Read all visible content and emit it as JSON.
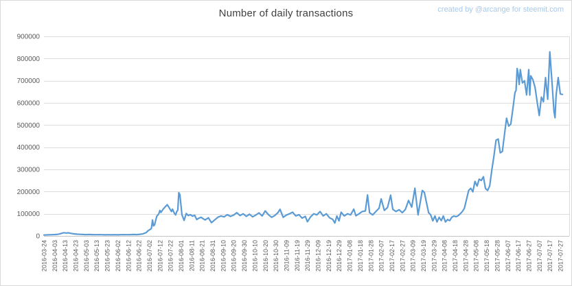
{
  "title": "Number of daily transactions",
  "credit": "created by @arcange for steemit.com",
  "colors": {
    "line": "#5B9BD5",
    "title_text": "#404040",
    "credit_text": "#A6C9EC",
    "axis_text": "#595959",
    "gridline": "#DCDCDC",
    "axis_line": "#C4C4C4",
    "background": "#FFFFFF"
  },
  "chart_data": {
    "type": "line",
    "title": "Number of daily transactions",
    "xlabel": "",
    "ylabel": "",
    "ylim": [
      0,
      900000
    ],
    "ytick_interval": 100000,
    "yticks": [
      0,
      100000,
      200000,
      300000,
      400000,
      500000,
      600000,
      700000,
      800000,
      900000
    ],
    "grid": "horizontal",
    "legend": "none",
    "xticks": [
      "2016-03-24",
      "2016-04-03",
      "2016-04-13",
      "2016-04-23",
      "2016-05-03",
      "2016-05-13",
      "2016-05-23",
      "2016-06-02",
      "2016-06-12",
      "2016-06-22",
      "2016-07-02",
      "2016-07-12",
      "2016-07-22",
      "2016-08-01",
      "2016-08-11",
      "2016-08-21",
      "2016-08-31",
      "2016-09-10",
      "2016-09-20",
      "2016-09-30",
      "2016-10-10",
      "2016-10-20",
      "2016-10-30",
      "2016-11-09",
      "2016-11-19",
      "2016-11-29",
      "2016-12-09",
      "2016-12-19",
      "2016-12-29",
      "2017-01-08",
      "2017-01-18",
      "2017-01-28",
      "2017-02-07",
      "2017-02-17",
      "2017-02-27",
      "2017-03-09",
      "2017-03-19",
      "2017-03-29",
      "2017-04-08",
      "2017-04-18",
      "2017-04-28",
      "2017-05-08",
      "2017-05-18",
      "2017-05-28",
      "2017-06-07",
      "2017-06-17",
      "2017-06-27",
      "2017-07-07",
      "2017-07-17",
      "2017-07-27"
    ],
    "series": [
      {
        "name": "daily transactions",
        "dates": [
          "2016-03-24",
          "2016-03-28",
          "2016-04-01",
          "2016-04-05",
          "2016-04-08",
          "2016-04-10",
          "2016-04-12",
          "2016-04-14",
          "2016-04-16",
          "2016-04-18",
          "2016-04-21",
          "2016-04-24",
          "2016-04-27",
          "2016-04-30",
          "2016-05-03",
          "2016-05-06",
          "2016-05-09",
          "2016-05-12",
          "2016-05-15",
          "2016-05-18",
          "2016-05-21",
          "2016-05-24",
          "2016-05-27",
          "2016-05-30",
          "2016-06-02",
          "2016-06-05",
          "2016-06-08",
          "2016-06-11",
          "2016-06-14",
          "2016-06-17",
          "2016-06-20",
          "2016-06-23",
          "2016-06-26",
          "2016-06-29",
          "2016-07-01",
          "2016-07-03",
          "2016-07-04",
          "2016-07-05",
          "2016-07-06",
          "2016-07-07",
          "2016-07-09",
          "2016-07-11",
          "2016-07-12",
          "2016-07-13",
          "2016-07-15",
          "2016-07-17",
          "2016-07-19",
          "2016-07-21",
          "2016-07-23",
          "2016-07-24",
          "2016-07-26",
          "2016-07-27",
          "2016-07-28",
          "2016-07-29",
          "2016-07-30",
          "2016-07-31",
          "2016-08-02",
          "2016-08-04",
          "2016-08-06",
          "2016-08-08",
          "2016-08-10",
          "2016-08-12",
          "2016-08-14",
          "2016-08-16",
          "2016-08-18",
          "2016-08-20",
          "2016-08-22",
          "2016-08-24",
          "2016-08-27",
          "2016-08-30",
          "2016-09-02",
          "2016-09-05",
          "2016-09-08",
          "2016-09-11",
          "2016-09-14",
          "2016-09-17",
          "2016-09-20",
          "2016-09-23",
          "2016-09-26",
          "2016-09-29",
          "2016-10-02",
          "2016-10-05",
          "2016-10-08",
          "2016-10-11",
          "2016-10-14",
          "2016-10-17",
          "2016-10-20",
          "2016-10-23",
          "2016-10-26",
          "2016-10-29",
          "2016-11-01",
          "2016-11-03",
          "2016-11-06",
          "2016-11-09",
          "2016-11-12",
          "2016-11-15",
          "2016-11-18",
          "2016-11-21",
          "2016-11-24",
          "2016-11-27",
          "2016-11-29",
          "2016-12-02",
          "2016-12-05",
          "2016-12-08",
          "2016-12-11",
          "2016-12-14",
          "2016-12-17",
          "2016-12-20",
          "2016-12-23",
          "2016-12-25",
          "2016-12-27",
          "2016-12-29",
          "2016-12-31",
          "2017-01-03",
          "2017-01-06",
          "2017-01-09",
          "2017-01-12",
          "2017-01-14",
          "2017-01-17",
          "2017-01-20",
          "2017-01-23",
          "2017-01-25",
          "2017-01-27",
          "2017-01-30",
          "2017-02-02",
          "2017-02-05",
          "2017-02-07",
          "2017-02-10",
          "2017-02-13",
          "2017-02-16",
          "2017-02-18",
          "2017-02-21",
          "2017-02-24",
          "2017-02-27",
          "2017-03-02",
          "2017-03-05",
          "2017-03-08",
          "2017-03-11",
          "2017-03-14",
          "2017-03-16",
          "2017-03-18",
          "2017-03-20",
          "2017-03-22",
          "2017-03-24",
          "2017-03-26",
          "2017-03-28",
          "2017-03-30",
          "2017-04-01",
          "2017-04-03",
          "2017-04-05",
          "2017-04-07",
          "2017-04-09",
          "2017-04-11",
          "2017-04-13",
          "2017-04-15",
          "2017-04-17",
          "2017-04-19",
          "2017-04-21",
          "2017-04-23",
          "2017-04-25",
          "2017-04-27",
          "2017-04-29",
          "2017-05-01",
          "2017-05-03",
          "2017-05-05",
          "2017-05-07",
          "2017-05-09",
          "2017-05-11",
          "2017-05-13",
          "2017-05-15",
          "2017-05-17",
          "2017-05-19",
          "2017-05-21",
          "2017-05-23",
          "2017-05-25",
          "2017-05-27",
          "2017-05-29",
          "2017-05-31",
          "2017-06-02",
          "2017-06-04",
          "2017-06-06",
          "2017-06-08",
          "2017-06-10",
          "2017-06-12",
          "2017-06-14",
          "2017-06-15",
          "2017-06-16",
          "2017-06-17",
          "2017-06-18",
          "2017-06-19",
          "2017-06-21",
          "2017-06-23",
          "2017-06-25",
          "2017-06-27",
          "2017-06-28",
          "2017-06-29",
          "2017-07-01",
          "2017-07-03",
          "2017-07-05",
          "2017-07-07",
          "2017-07-09",
          "2017-07-11",
          "2017-07-13",
          "2017-07-15",
          "2017-07-17",
          "2017-07-19",
          "2017-07-21",
          "2017-07-22",
          "2017-07-23",
          "2017-07-25",
          "2017-07-27",
          "2017-07-29"
        ],
        "values": [
          4000,
          5000,
          5500,
          6500,
          9000,
          12000,
          14500,
          13000,
          14000,
          12000,
          9500,
          8000,
          7000,
          6500,
          6000,
          6500,
          6000,
          5500,
          6000,
          5500,
          5000,
          5500,
          5000,
          5500,
          5000,
          5500,
          6000,
          5500,
          6000,
          6500,
          6000,
          7500,
          9500,
          15000,
          24000,
          30000,
          34000,
          72000,
          45000,
          50000,
          88000,
          100000,
          115000,
          106000,
          120000,
          131000,
          141000,
          126000,
          110000,
          121000,
          100000,
          95000,
          110000,
          116000,
          195000,
          186000,
          95000,
          70000,
          101000,
          92000,
          96000,
          89000,
          93000,
          74000,
          80000,
          84000,
          78000,
          72000,
          82000,
          60000,
          72000,
          84000,
          90000,
          86000,
          96000,
          88000,
          94000,
          105000,
          92000,
          100000,
          88000,
          98000,
          86000,
          94000,
          104000,
          90000,
          113000,
          96000,
          84000,
          92000,
          105000,
          120000,
          84000,
          94000,
          100000,
          107000,
          90000,
          96000,
          80000,
          88000,
          64000,
          86000,
          100000,
          95000,
          110000,
          90000,
          100000,
          82000,
          75000,
          58000,
          90000,
          68000,
          107000,
          90000,
          100000,
          95000,
          121000,
          91000,
          100000,
          110000,
          113000,
          185000,
          105000,
          95000,
          110000,
          125000,
          167000,
          115000,
          128000,
          184000,
          120000,
          110000,
          118000,
          105000,
          120000,
          160000,
          130000,
          215000,
          95000,
          150000,
          205000,
          196000,
          150000,
          105000,
          95000,
          68000,
          90000,
          63000,
          84000,
          69000,
          90000,
          63000,
          74000,
          69000,
          84000,
          90000,
          87000,
          91000,
          100000,
          110000,
          125000,
          165000,
          205000,
          215000,
          199000,
          246000,
          225000,
          256000,
          250000,
          267000,
          214000,
          205000,
          226000,
          297000,
          360000,
          432000,
          437000,
          375000,
          381000,
          458000,
          531000,
          495000,
          505000,
          573000,
          648000,
          655000,
          755000,
          730000,
          683000,
          750000,
          690000,
          700000,
          636000,
          750000,
          635000,
          722000,
          704000,
          670000,
          605000,
          543000,
          626000,
          605000,
          714000,
          616000,
          830000,
          700000,
          560000,
          533000,
          636000,
          714000,
          640000,
          638000
        ]
      }
    ]
  }
}
